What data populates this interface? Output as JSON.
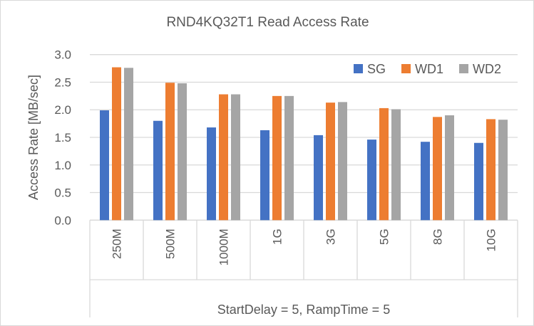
{
  "chart_data": {
    "type": "bar",
    "title": "RND4KQ32T1 Read Access Rate",
    "xlabel": "StartDelay = 5, RampTime = 5",
    "ylabel": "Access Rate [MB/sec]",
    "ylim": [
      0,
      3.0
    ],
    "yticks": [
      "0.0",
      "0.5",
      "1.0",
      "1.5",
      "2.0",
      "2.5",
      "3.0"
    ],
    "grid": true,
    "legend_position": "top-right",
    "categories": [
      "250M",
      "500M",
      "1000M",
      "1G",
      "3G",
      "5G",
      "8G",
      "10G"
    ],
    "series": [
      {
        "name": "SG",
        "color": "#4472c4",
        "values": [
          1.99,
          1.8,
          1.68,
          1.63,
          1.54,
          1.46,
          1.42,
          1.4
        ]
      },
      {
        "name": "WD1",
        "color": "#ed7d31",
        "values": [
          2.77,
          2.49,
          2.28,
          2.25,
          2.13,
          2.03,
          1.87,
          1.83
        ]
      },
      {
        "name": "WD2",
        "color": "#a5a5a5",
        "values": [
          2.76,
          2.48,
          2.28,
          2.25,
          2.14,
          2.01,
          1.9,
          1.82
        ]
      }
    ]
  }
}
